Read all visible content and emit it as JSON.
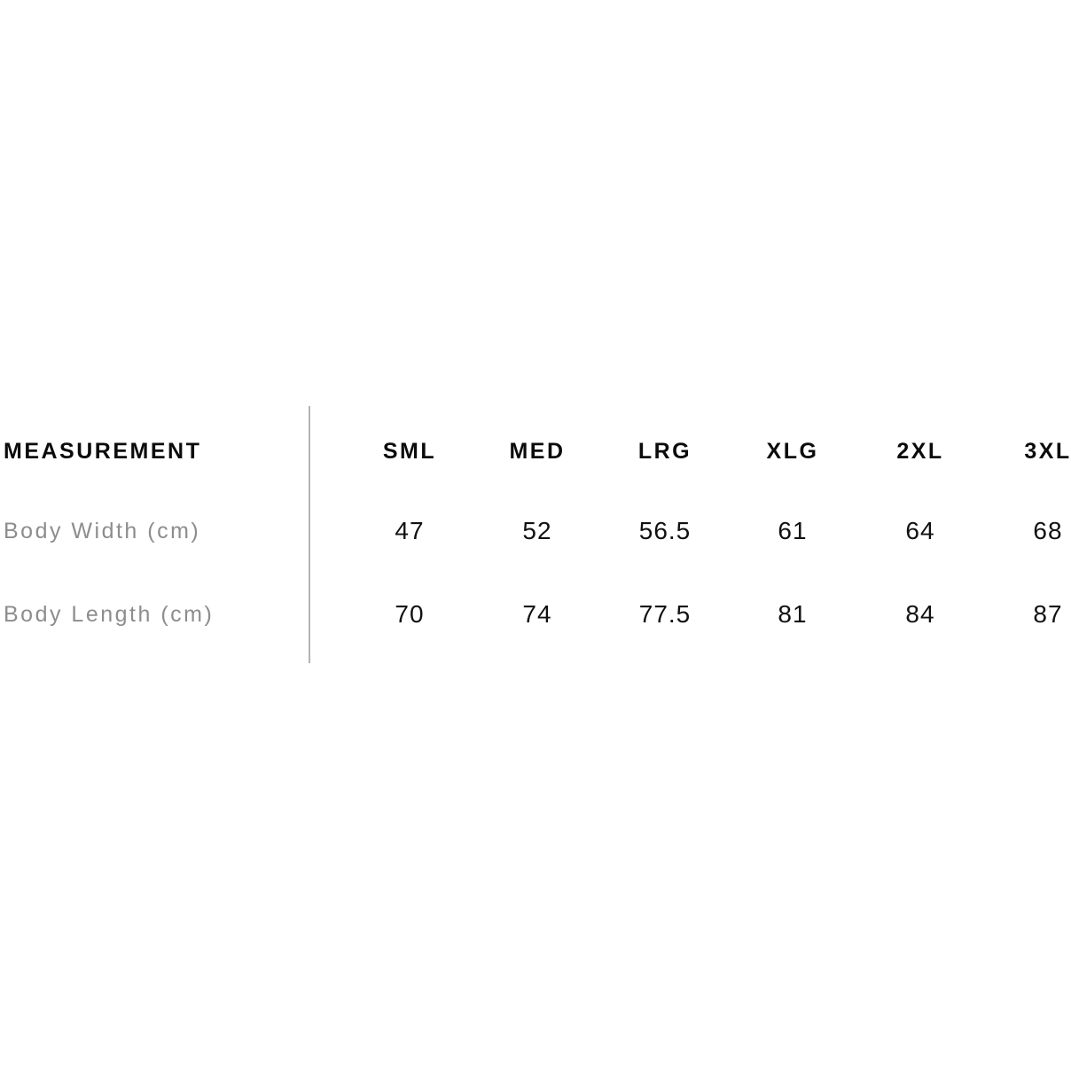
{
  "size_chart": {
    "header": {
      "label": "MEASUREMENT",
      "sizes": [
        "SML",
        "MED",
        "LRG",
        "XLG",
        "2XL",
        "3XL"
      ]
    },
    "rows": [
      {
        "label": "Body Width (cm)",
        "values": [
          "47",
          "52",
          "56.5",
          "61",
          "64",
          "68"
        ]
      },
      {
        "label": "Body Length (cm)",
        "values": [
          "70",
          "74",
          "77.5",
          "81",
          "84",
          "87"
        ]
      }
    ]
  },
  "colors": {
    "background": "#ffffff",
    "header_text": "#0b0b0b",
    "value_text": "#111111",
    "label_text": "#8d8d8d",
    "divider": "#b4b4b4"
  },
  "chart_data": {
    "type": "table",
    "title": "MEASUREMENT",
    "columns": [
      "SML",
      "MED",
      "LRG",
      "XLG",
      "2XL",
      "3XL"
    ],
    "series": [
      {
        "name": "Body Width (cm)",
        "values": [
          47,
          52,
          56.5,
          61,
          64,
          68
        ]
      },
      {
        "name": "Body Length (cm)",
        "values": [
          70,
          74,
          77.5,
          81,
          84,
          87
        ]
      }
    ]
  }
}
